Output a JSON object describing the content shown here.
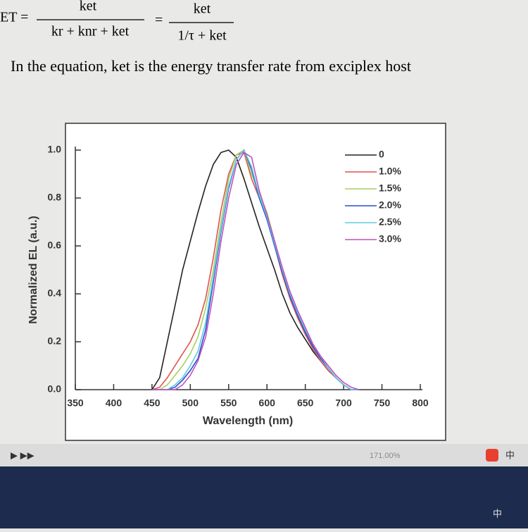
{
  "equation": {
    "lhs": "ET =",
    "num1": "ket",
    "den1": "kr + knr + ket",
    "eq": "=",
    "num2": "ket",
    "den2": "1/τ + ket"
  },
  "caption": "In the equation, ket is the energy transfer rate from exciplex host",
  "toolbar": {
    "zoom": "171.00%",
    "ime": "中"
  },
  "taskbar": {
    "ime": "中"
  },
  "chart_data": {
    "type": "line",
    "x_label": "Wavelength (nm)",
    "y_label": "Normalized EL (a.u.)",
    "x": [
      450,
      460,
      470,
      480,
      490,
      500,
      510,
      520,
      530,
      540,
      550,
      560,
      570,
      580,
      590,
      600,
      610,
      620,
      630,
      640,
      650,
      660,
      670,
      680,
      690,
      700,
      710,
      720
    ],
    "series": [
      {
        "name": "0",
        "color": "#222222",
        "values": [
          0,
          0.05,
          0.2,
          0.35,
          0.5,
          0.62,
          0.74,
          0.85,
          0.94,
          0.99,
          1.0,
          0.97,
          0.88,
          0.78,
          0.68,
          0.59,
          0.5,
          0.4,
          0.32,
          0.26,
          0.21,
          0.16,
          0.12,
          0.08,
          0.05,
          0.02,
          0,
          0
        ]
      },
      {
        "name": "1.0%",
        "color": "#e05050",
        "values": [
          0,
          0.01,
          0.05,
          0.1,
          0.15,
          0.2,
          0.27,
          0.38,
          0.55,
          0.75,
          0.9,
          0.98,
          0.99,
          0.88,
          0.8,
          0.72,
          0.6,
          0.48,
          0.38,
          0.3,
          0.23,
          0.17,
          0.12,
          0.08,
          0.05,
          0.02,
          0,
          0
        ]
      },
      {
        "name": "1.5%",
        "color": "#a8d060",
        "values": [
          0,
          0,
          0.02,
          0.06,
          0.1,
          0.15,
          0.22,
          0.34,
          0.5,
          0.7,
          0.88,
          0.98,
          1.0,
          0.9,
          0.82,
          0.74,
          0.62,
          0.49,
          0.39,
          0.31,
          0.24,
          0.18,
          0.13,
          0.09,
          0.05,
          0.02,
          0,
          0
        ]
      },
      {
        "name": "2.0%",
        "color": "#2050d0",
        "values": [
          0,
          0,
          0,
          0.01,
          0.04,
          0.08,
          0.13,
          0.25,
          0.45,
          0.66,
          0.84,
          0.96,
          1.0,
          0.92,
          0.8,
          0.71,
          0.6,
          0.49,
          0.39,
          0.31,
          0.24,
          0.18,
          0.13,
          0.09,
          0.05,
          0.02,
          0,
          0
        ]
      },
      {
        "name": "2.5%",
        "color": "#60c8e0",
        "values": [
          0,
          0,
          0,
          0.02,
          0.05,
          0.1,
          0.16,
          0.28,
          0.47,
          0.67,
          0.85,
          0.96,
          1.0,
          0.93,
          0.81,
          0.72,
          0.61,
          0.5,
          0.4,
          0.32,
          0.25,
          0.19,
          0.14,
          0.09,
          0.05,
          0.02,
          0,
          0
        ]
      },
      {
        "name": "3.0%",
        "color": "#c050c0",
        "values": [
          0,
          0,
          0,
          0,
          0.02,
          0.06,
          0.12,
          0.22,
          0.4,
          0.62,
          0.8,
          0.94,
          0.99,
          0.97,
          0.83,
          0.73,
          0.62,
          0.51,
          0.41,
          0.33,
          0.26,
          0.19,
          0.14,
          0.1,
          0.06,
          0.03,
          0.01,
          0
        ]
      }
    ],
    "xlim": [
      350,
      800
    ],
    "xticks": [
      350,
      400,
      450,
      500,
      550,
      600,
      650,
      700,
      750,
      800
    ],
    "ylim": [
      0,
      1.0
    ],
    "yticks": [
      {
        "value": 0,
        "label": "0.0"
      },
      0.2,
      0.4,
      0.6,
      0.8,
      {
        "value": 1.0,
        "label": "1.0"
      }
    ],
    "legend": "upper right"
  }
}
